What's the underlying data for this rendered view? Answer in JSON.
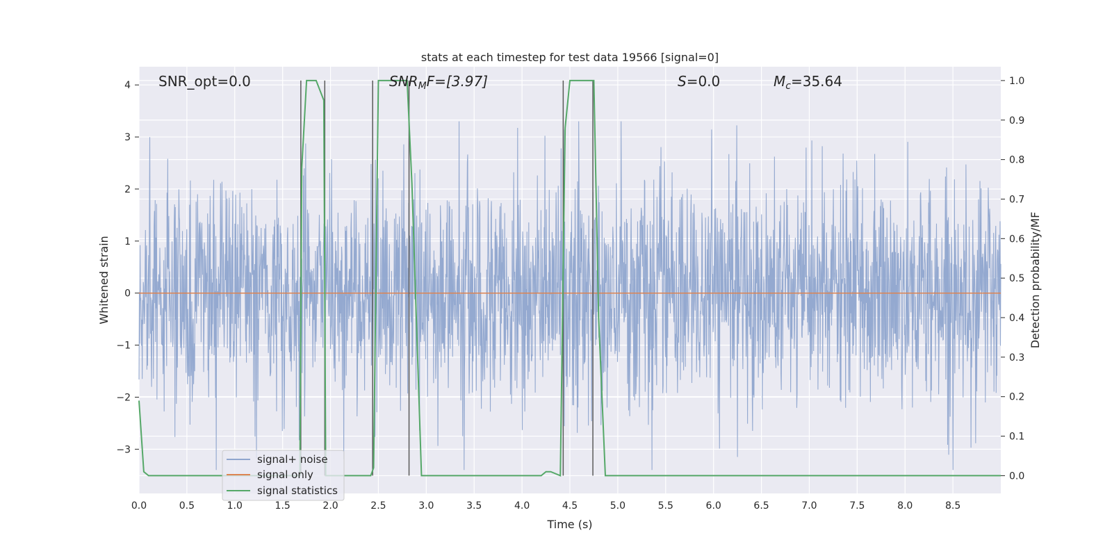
{
  "chart_data": {
    "type": "line",
    "title": "stats at each timestep for test data 19566 [signal=0]",
    "xlabel": "Time (s)",
    "ylabel": "Whitened strain",
    "ylabel_right": "Detection probability/MF",
    "xlim": [
      0.0,
      9.0
    ],
    "ylim": [
      -3.85,
      4.35
    ],
    "ylim_right": [
      -0.045,
      1.035
    ],
    "x_ticks": [
      "0.0",
      "0.5",
      "1.0",
      "1.5",
      "2.0",
      "2.5",
      "3.0",
      "3.5",
      "4.0",
      "4.5",
      "5.0",
      "5.5",
      "6.0",
      "6.5",
      "7.0",
      "7.5",
      "8.0",
      "8.5"
    ],
    "y_ticks": [
      "4",
      "3",
      "2",
      "1",
      "0",
      "−1",
      "−2",
      "−3"
    ],
    "y_ticks_right": [
      "1.0",
      "0.9",
      "0.8",
      "0.7",
      "0.6",
      "0.5",
      "0.4",
      "0.3",
      "0.2",
      "0.1",
      "0.0"
    ],
    "grid": true,
    "legend_position": "lower-left",
    "annotations": {
      "snr_opt": "SNR_opt=0.0",
      "snr_mf_sym": "SNR",
      "snr_mf_sub": "M",
      "snr_mf_rest": "F=[3.97]",
      "s_sym": "S",
      "s_rest": "=0.0",
      "mc_sym": "M",
      "mc_sub": "c",
      "mc_rest": "=35.64"
    },
    "series": [
      {
        "name": "signal+ noise",
        "color": "#8fa5ce",
        "description_values": "dense whitened noise, amplitude roughly between -3.4 and 3.3, sampled over 0 to 9 s",
        "amplitude_range": [
          -3.4,
          3.3
        ]
      },
      {
        "name": "signal only",
        "color": "#dd8452",
        "x": [
          0.0,
          9.0
        ],
        "y": [
          0.0,
          0.0
        ]
      },
      {
        "name": "signal statistics",
        "color": "#55a868",
        "axis": "right",
        "x": [
          0.0,
          0.05,
          0.1,
          0.5,
          1.0,
          1.5,
          1.68,
          1.7,
          1.75,
          1.85,
          1.93,
          1.95,
          2.0,
          2.3,
          2.42,
          2.45,
          2.5,
          2.6,
          2.8,
          2.85,
          2.95,
          3.5,
          4.0,
          4.2,
          4.25,
          4.3,
          4.4,
          4.45,
          4.5,
          4.6,
          4.75,
          4.8,
          4.87,
          4.9,
          5.5,
          6.0,
          7.0,
          8.0,
          9.0
        ],
        "y": [
          0.19,
          0.01,
          0.0,
          0.0,
          0.0,
          0.0,
          0.0,
          0.78,
          1.0,
          1.0,
          0.95,
          0.0,
          0.0,
          0.0,
          0.0,
          0.02,
          1.0,
          1.0,
          1.0,
          0.74,
          0.0,
          0.0,
          0.0,
          0.0,
          0.01,
          0.01,
          0.0,
          0.88,
          1.0,
          1.0,
          1.0,
          0.4,
          0.0,
          0.0,
          0.0,
          0.0,
          0.0,
          0.0,
          0.0
        ]
      }
    ],
    "vertical_markers": {
      "color": "#5a5a5a",
      "x": [
        1.69,
        1.94,
        2.44,
        2.82,
        4.43,
        4.74
      ]
    }
  }
}
